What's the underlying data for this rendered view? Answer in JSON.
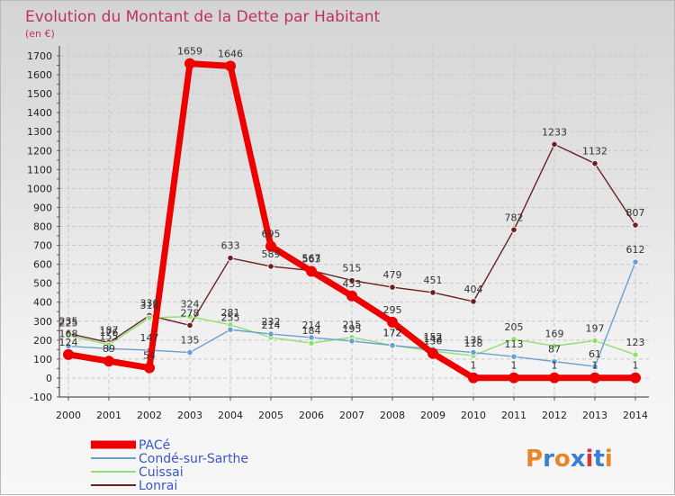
{
  "chart_data": {
    "type": "line",
    "title": "Evolution du Montant de la Dette par Habitant",
    "ylabel": "(en €)",
    "xlabel": "",
    "ylim": [
      -100,
      1700
    ],
    "yticks": [
      -100,
      0,
      100,
      200,
      300,
      400,
      500,
      600,
      700,
      800,
      900,
      1000,
      1100,
      1200,
      1300,
      1400,
      1500,
      1600,
      1700
    ],
    "x": [
      "2000",
      "2001",
      "2002",
      "2003",
      "2004",
      "2005",
      "2006",
      "2007",
      "2008",
      "2009",
      "2010",
      "2011",
      "2012",
      "2013",
      "2014"
    ],
    "grid": true,
    "legend_position": "bottom-left",
    "series": [
      {
        "name": "PACé",
        "color": "#ee0000",
        "values": [
          124,
          89,
          54,
          1659,
          1646,
          695,
          563,
          433,
          295,
          130,
          1,
          1,
          1,
          1,
          1
        ]
      },
      {
        "name": "Condé-sur-Sarthe",
        "color": "#6a9fd4",
        "values": [
          168,
          155,
          147,
          135,
          255,
          232,
          214,
          195,
          172,
          152,
          135,
          113,
          87,
          61,
          612
        ]
      },
      {
        "name": "Cuissai",
        "color": "#90e070",
        "values": [
          225,
          176,
          318,
          324,
          281,
          214,
          184,
          215,
          172,
          142,
          118,
          205,
          169,
          197,
          123
        ]
      },
      {
        "name": "Lonrai",
        "color": "#6b1f1f",
        "values": [
          235,
          187,
          330,
          278,
          633,
          589,
          567,
          515,
          479,
          451,
          404,
          782,
          1233,
          1132,
          807
        ]
      }
    ]
  },
  "logo": {
    "text": "Proxiti"
  }
}
